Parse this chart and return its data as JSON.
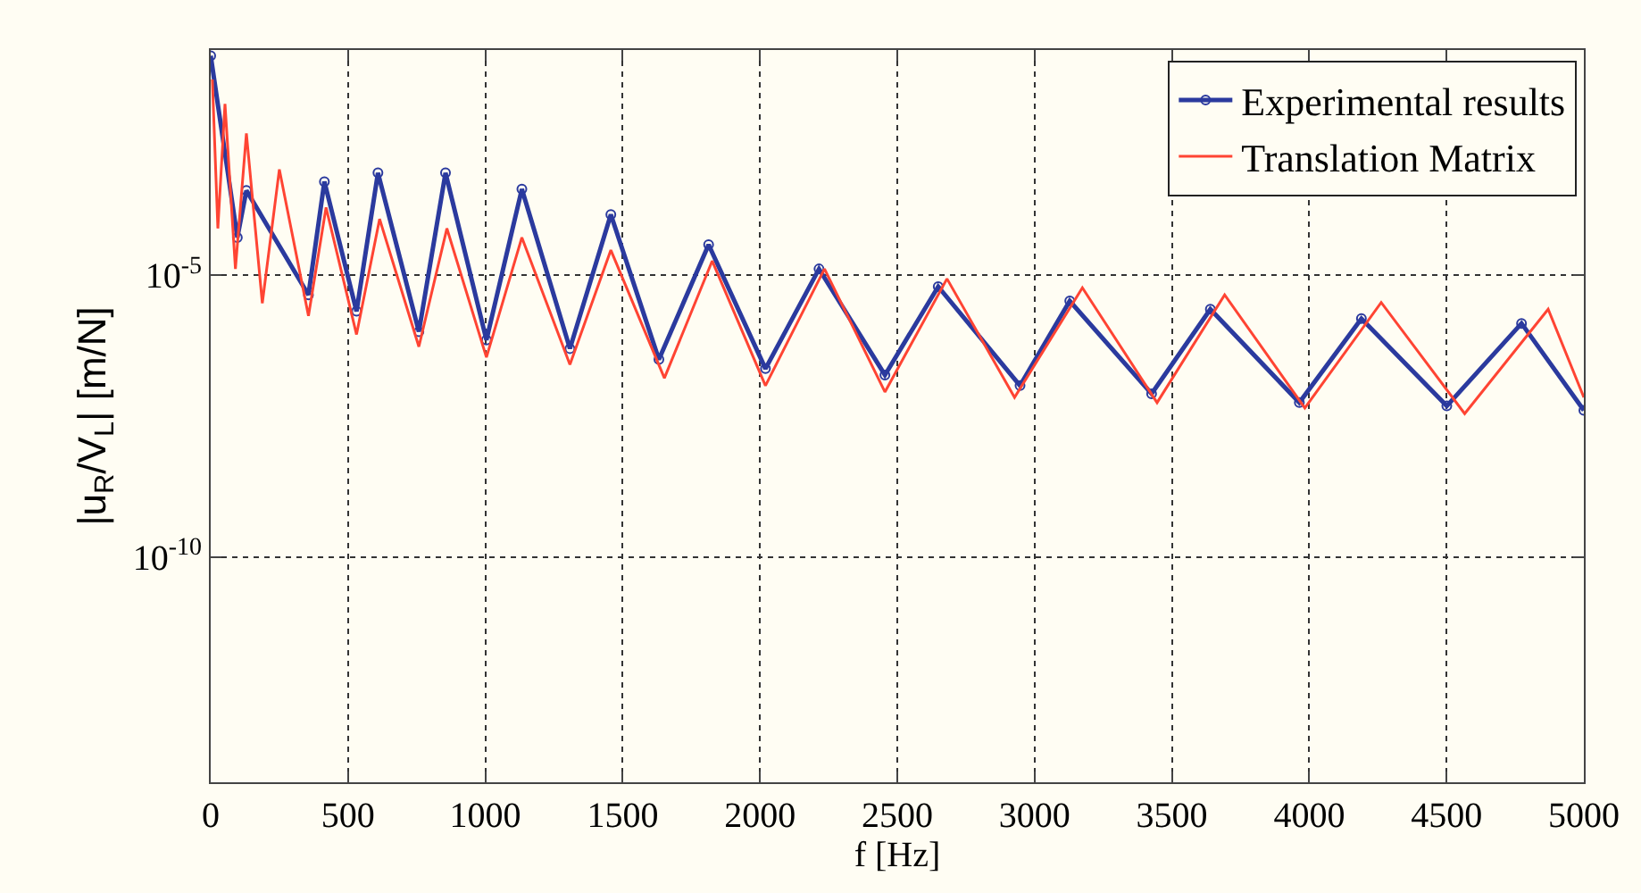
{
  "chart_data": {
    "type": "line",
    "xlabel": "f [Hz]",
    "ylabel": "|u$_{R}$/V$_{L}$| [m/N]",
    "log": "y",
    "grid": true,
    "legend": "top right",
    "xlim": [
      0,
      5000
    ],
    "xticks": [
      0,
      500,
      1000,
      1500,
      2000,
      2500,
      3000,
      3500,
      4000,
      4500,
      5000
    ],
    "ylim": [
      1e-14,
      0.1
    ],
    "yticks": [
      {
        "value": 1e-05,
        "label": "10$^{-5}$"
      },
      {
        "value": 1e-10,
        "label": "10$^{-10}$"
      }
    ],
    "series": [
      {
        "name": "Experimental results",
        "color": "#2b3a9e",
        "marker": "circle",
        "x": [
          0,
          97,
          130,
          356,
          414,
          531,
          609,
          758,
          855,
          1004,
          1133,
          1308,
          1457,
          1632,
          1813,
          2020,
          2215,
          2455,
          2649,
          2947,
          3128,
          3426,
          3640,
          3964,
          4190,
          4501,
          4773,
          5000
        ],
        "values": [
          0.079,
          4.7e-05,
          0.00032,
          4.5e-06,
          0.00046,
          2.3e-06,
          0.00066,
          1e-06,
          0.00066,
          7.1e-07,
          0.00034,
          5e-07,
          0.00012,
          3.2e-07,
          3.5e-05,
          2.2e-07,
          1.3e-05,
          1.7e-07,
          6.3e-06,
          1.1e-07,
          3.5e-06,
          7.9e-08,
          2.5e-06,
          5.5e-08,
          1.7e-06,
          4.8e-08,
          1.4e-06,
          4e-08
        ]
      },
      {
        "name": "Translation Matrix",
        "color": "#ff4433",
        "marker": "none",
        "x": [
          6,
          26,
          52,
          90,
          130,
          188,
          250,
          356,
          420,
          531,
          615,
          758,
          860,
          1004,
          1133,
          1308,
          1457,
          1652,
          1826,
          2020,
          2235,
          2455,
          2681,
          2927,
          3174,
          3446,
          3692,
          3984,
          4262,
          4566,
          4870,
          5000
        ],
        "values": [
          0.03,
          6.8e-05,
          0.011,
          1.3e-05,
          0.0033,
          3.2e-06,
          0.00076,
          1.9e-06,
          0.00016,
          8.9e-07,
          0.0001,
          5.4e-07,
          6.8e-05,
          3.5e-07,
          4.7e-05,
          2.6e-07,
          2.8e-05,
          1.5e-07,
          1.8e-05,
          1.1e-07,
          1.3e-05,
          8.5e-08,
          8.7e-06,
          6.8e-08,
          6e-06,
          5.5e-08,
          4.5e-06,
          4.4e-08,
          3.3e-06,
          3.5e-08,
          2.5e-06,
          6.8e-08
        ]
      }
    ]
  }
}
